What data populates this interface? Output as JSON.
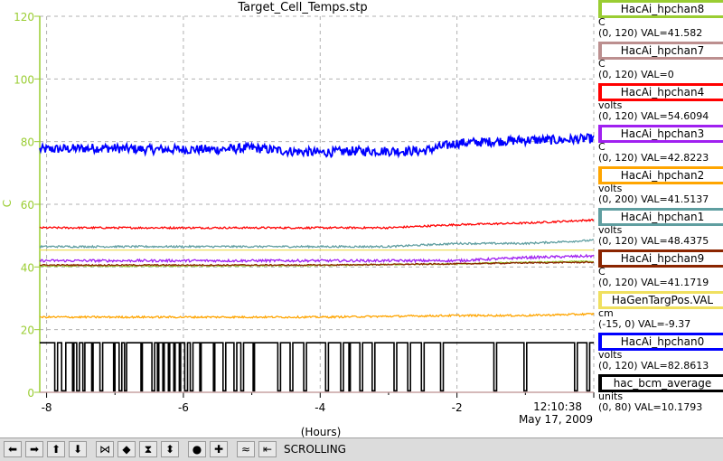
{
  "chart_data": {
    "type": "line",
    "title": "Target_Cell_Temps.stp",
    "xlabel": "(Hours)",
    "ylabel": "C",
    "xlim": [
      -8.1,
      0
    ],
    "ylim": [
      0,
      120
    ],
    "x_ticks": [
      -8,
      -6,
      -4,
      -2
    ],
    "x_tick_labels": [
      "-8",
      "-6",
      "-4",
      "-2"
    ],
    "y_ticks": [
      0,
      20,
      40,
      60,
      80,
      100,
      120
    ],
    "y_tick_labels": [
      "0",
      "20",
      "40",
      "60",
      "80",
      "100",
      "120"
    ],
    "grid": true,
    "end_time": "12:10:38",
    "end_date": "May 17, 2009",
    "series": [
      {
        "name": "HacAi_hpchan0",
        "color": "#0000ff",
        "x": [
          -8.1,
          -7.2,
          -6.5,
          -6,
          -5.5,
          -5,
          -4.5,
          -4,
          -3.5,
          -3,
          -2.5,
          -2,
          -1.5,
          -1,
          -0.5,
          0
        ],
        "y": [
          77.5,
          78,
          77.5,
          77.5,
          77.5,
          78,
          77,
          76.5,
          77,
          77,
          77,
          79.5,
          80,
          80.5,
          80.5,
          81
        ],
        "noise": 1.5
      },
      {
        "name": "HacAi_hpchan4",
        "color": "#ff0000",
        "x": [
          -8.1,
          -7,
          -6,
          -5,
          -4,
          -3,
          -2,
          -1,
          0
        ],
        "y": [
          52.5,
          52.5,
          52.5,
          52.5,
          52.5,
          52.5,
          53.5,
          54,
          55
        ],
        "noise": 0.3
      },
      {
        "name": "HacAi_hpchan1",
        "color": "#5f9ea0",
        "x": [
          -8.1,
          -6,
          -4,
          -3,
          -2,
          -1,
          0
        ],
        "y": [
          46.5,
          46.5,
          46.5,
          46.5,
          47.5,
          47.5,
          48.5
        ],
        "noise": 0.3
      },
      {
        "name": "HaGenTargPos.VAL",
        "color": "#f0e060",
        "x": [
          -8.1,
          0
        ],
        "y": [
          45.4,
          45.4
        ],
        "noise": 0
      },
      {
        "name": "HacAi_hpchan3",
        "color": "#a020f0",
        "x": [
          -8.1,
          -6,
          -4,
          -2,
          -1,
          0
        ],
        "y": [
          42,
          42,
          42,
          42,
          43,
          43.5
        ],
        "noise": 0.4
      },
      {
        "name": "HacAi_hpchan8",
        "color": "#9acd32",
        "x": [
          -8.1,
          -6,
          -4,
          -2,
          -1,
          0
        ],
        "y": [
          40.3,
          40.3,
          40.5,
          41,
          41.5,
          41.8
        ],
        "noise": 0.2
      },
      {
        "name": "HacAi_hpchan9",
        "color": "#8b2500",
        "x": [
          -8.1,
          -6,
          -4,
          -2,
          -1,
          0
        ],
        "y": [
          40.6,
          40.6,
          40.6,
          41,
          41.3,
          41.5
        ],
        "noise": 0.2
      },
      {
        "name": "HacAi_hpchan2",
        "color": "#ffa500",
        "x": [
          -8.1,
          -6,
          -4,
          -2,
          -1,
          0
        ],
        "y": [
          24,
          24,
          24,
          24.5,
          24.5,
          25
        ],
        "noise": 0.3
      },
      {
        "name": "HacAi_hpchan7",
        "color": "#bc8f8f",
        "x": [
          -8.1,
          0
        ],
        "y": [
          0,
          0
        ],
        "noise": 0
      }
    ],
    "bcm_series": {
      "name": "hac_bcm_average",
      "color": "#000000",
      "high": 15.8,
      "low": 0.5,
      "dropouts": [
        [
          -7.88,
          -7.84
        ],
        [
          -7.78,
          -7.72
        ],
        [
          -7.62,
          -7.6
        ],
        [
          -7.56,
          -7.52
        ],
        [
          -7.47,
          -7.44
        ],
        [
          -7.34,
          -7.32
        ],
        [
          -7.22,
          -7.18
        ],
        [
          -7.02,
          -7.0
        ],
        [
          -6.94,
          -6.9
        ],
        [
          -6.86,
          -6.83
        ],
        [
          -6.62,
          -6.6
        ],
        [
          -6.46,
          -6.42
        ],
        [
          -6.38,
          -6.36
        ],
        [
          -6.3,
          -6.28
        ],
        [
          -6.22,
          -6.2
        ],
        [
          -6.14,
          -6.12
        ],
        [
          -6.06,
          -6.04
        ],
        [
          -5.98,
          -5.94
        ],
        [
          -5.9,
          -5.86
        ],
        [
          -5.76,
          -5.74
        ],
        [
          -5.56,
          -5.54
        ],
        [
          -5.42,
          -5.38
        ],
        [
          -5.26,
          -5.22
        ],
        [
          -5.16,
          -5.12
        ],
        [
          -4.98,
          -4.96
        ],
        [
          -4.62,
          -4.58
        ],
        [
          -4.44,
          -4.4
        ],
        [
          -4.24,
          -4.2
        ],
        [
          -3.92,
          -3.88
        ],
        [
          -3.7,
          -3.66
        ],
        [
          -3.58,
          -3.56
        ],
        [
          -3.42,
          -3.38
        ],
        [
          -3.24,
          -3.2
        ],
        [
          -2.92,
          -2.88
        ],
        [
          -2.72,
          -2.68
        ],
        [
          -2.52,
          -2.48
        ],
        [
          -2.24,
          -2.2
        ],
        [
          -1.46,
          -1.42
        ],
        [
          -1.02,
          -0.98
        ],
        [
          -0.28,
          -0.24
        ],
        [
          -0.1,
          -0.06
        ]
      ]
    }
  },
  "legend": [
    {
      "name": "HacAi_hpchan8",
      "color": "#9acd32",
      "unit": "C",
      "range": "(0, 120) VAL=41.582"
    },
    {
      "name": "HacAi_hpchan7",
      "color": "#bc8f8f",
      "unit": "C",
      "range": "(0, 120) VAL=0"
    },
    {
      "name": "HacAi_hpchan4",
      "color": "#ff0000",
      "unit": "volts",
      "range": "(0, 120) VAL=54.6094"
    },
    {
      "name": "HacAi_hpchan3",
      "color": "#a020f0",
      "unit": "C",
      "range": "(0, 120) VAL=42.8223"
    },
    {
      "name": "HacAi_hpchan2",
      "color": "#ffa500",
      "unit": "volts",
      "range": "(0, 200) VAL=41.5137"
    },
    {
      "name": "HacAi_hpchan1",
      "color": "#5f9ea0",
      "unit": "volts",
      "range": "(0, 120) VAL=48.4375"
    },
    {
      "name": "HacAi_hpchan9",
      "color": "#8b2500",
      "unit": "C",
      "range": "(0, 120) VAL=41.1719"
    },
    {
      "name": "HaGenTargPos.VAL",
      "color": "#f0e060",
      "unit": "cm",
      "range": "(-15, 0) VAL=-9.37"
    },
    {
      "name": "HacAi_hpchan0",
      "color": "#0000ff",
      "unit": "volts",
      "range": "(0, 120) VAL=82.8613"
    },
    {
      "name": "hac_bcm_average",
      "color": "#000000",
      "unit": "units",
      "range": "(0, 80) VAL=10.1793"
    }
  ],
  "toolbar": {
    "status": "SCROLLING",
    "buttons": [
      {
        "name": "left-arrow-icon",
        "glyph": "⬅"
      },
      {
        "name": "right-arrow-icon",
        "glyph": "➡"
      },
      {
        "name": "up-arrow-icon",
        "glyph": "⬆"
      },
      {
        "name": "down-arrow-icon",
        "glyph": "⬇"
      },
      {
        "name": "zoom-in-horizontal-icon",
        "glyph": "⋈"
      },
      {
        "name": "zoom-out-horizontal-icon",
        "glyph": "◆"
      },
      {
        "name": "zoom-in-vertical-icon",
        "glyph": "⧗"
      },
      {
        "name": "zoom-out-vertical-icon",
        "glyph": "⬍"
      },
      {
        "name": "record-icon",
        "glyph": "●"
      },
      {
        "name": "add-icon",
        "glyph": "✚"
      },
      {
        "name": "autoscale-icon",
        "glyph": "≈"
      },
      {
        "name": "scroll-mode-icon",
        "glyph": "⇤"
      }
    ]
  }
}
